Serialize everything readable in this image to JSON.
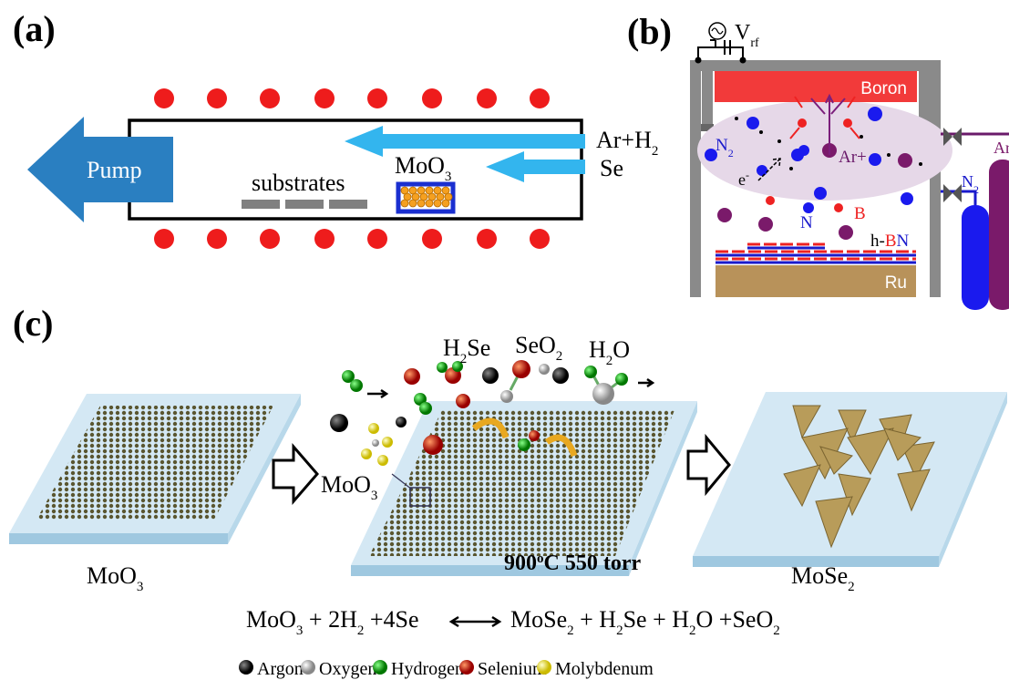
{
  "panel_a": {
    "label": "(a)",
    "pump": "Pump",
    "gas_1": [
      "Ar+H",
      "2"
    ],
    "gas_2": "Se",
    "source": [
      "MoO",
      "3"
    ],
    "substrates": "substrates"
  },
  "panel_b": {
    "label": "(b)",
    "vrf": [
      "V",
      "rf"
    ],
    "target": "Boron",
    "n2": [
      "N",
      "2"
    ],
    "ar_ion": "Ar+",
    "electron": [
      "e",
      "-"
    ],
    "b": "B",
    "n": "N",
    "hbn": [
      "h-",
      "B",
      "N"
    ],
    "ru": "Ru",
    "n2_cylinder": [
      "N",
      "2"
    ],
    "ar_cylinder": "Ar"
  },
  "panel_c": {
    "label": "(c)",
    "h2se": [
      "H",
      "2",
      "Se"
    ],
    "seo2": [
      "SeO",
      "2"
    ],
    "h2o": [
      "H",
      "2",
      "O"
    ],
    "moo3_tag": [
      "MoO",
      "3"
    ],
    "conditions": [
      "900",
      "o",
      "C 550 torr"
    ],
    "start": [
      "MoO",
      "3"
    ],
    "product": [
      "MoSe",
      "2"
    ],
    "equation_left": [
      "MoO",
      "3",
      " + 2H",
      "2",
      " +4Se"
    ],
    "equation_right": [
      "MoSe",
      "2",
      " + H",
      "2",
      "Se + H",
      "2",
      "O +SeO",
      "2"
    ],
    "legend": [
      "Argon",
      "Oxygen",
      "Hydrogen",
      "Selenium",
      "Molybdenum"
    ]
  }
}
